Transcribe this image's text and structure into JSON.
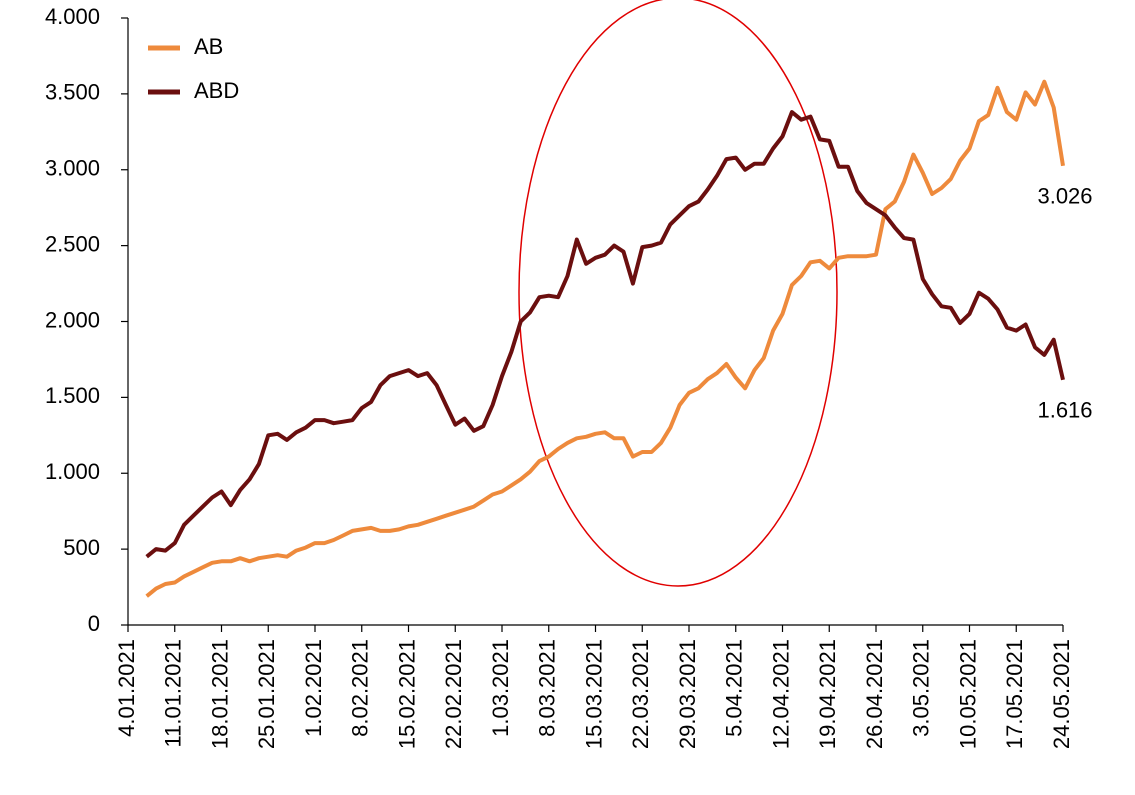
{
  "chart_data": {
    "type": "line",
    "categories": [
      "4.01.2021",
      null,
      null,
      null,
      null,
      "11.01.2021",
      null,
      null,
      null,
      null,
      "18.01.2021",
      null,
      null,
      null,
      null,
      "25.01.2021",
      null,
      null,
      null,
      null,
      "1.02.2021",
      null,
      null,
      null,
      null,
      "8.02.2021",
      null,
      null,
      null,
      null,
      "15.02.2021",
      null,
      null,
      null,
      null,
      "22.02.2021",
      null,
      null,
      null,
      null,
      "1.03.2021",
      null,
      null,
      null,
      null,
      "8.03.2021",
      null,
      null,
      null,
      null,
      "15.03.2021",
      null,
      null,
      null,
      null,
      "22.03.2021",
      null,
      null,
      null,
      null,
      "29.03.2021",
      null,
      null,
      null,
      null,
      "5.04.2021",
      null,
      null,
      null,
      null,
      "12.04.2021",
      null,
      null,
      null,
      null,
      "19.04.2021",
      null,
      null,
      null,
      null,
      "26.04.2021",
      null,
      null,
      null,
      null,
      "3.05.2021",
      null,
      null,
      null,
      null,
      "10.05.2021",
      null,
      null,
      null,
      null,
      "17.05.2021",
      null,
      null,
      null,
      null,
      "24.05.2021"
    ],
    "series": [
      {
        "name": "AB",
        "color": "#ee8a3c",
        "values": [
          null,
          null,
          190,
          240,
          270,
          280,
          320,
          350,
          380,
          410,
          420,
          420,
          440,
          420,
          440,
          450,
          460,
          450,
          490,
          510,
          540,
          540,
          560,
          590,
          620,
          630,
          640,
          620,
          620,
          630,
          650,
          660,
          680,
          700,
          720,
          740,
          760,
          780,
          820,
          860,
          880,
          920,
          960,
          1010,
          1080,
          1110,
          1160,
          1200,
          1230,
          1240,
          1260,
          1270,
          1230,
          1230,
          1110,
          1140,
          1140,
          1200,
          1300,
          1450,
          1530,
          1560,
          1620,
          1660,
          1720,
          1630,
          1560,
          1680,
          1760,
          1940,
          2050,
          2240,
          2300,
          2390,
          2400,
          2350,
          2420,
          2430,
          2430,
          2430,
          2440,
          2740,
          2790,
          2920,
          3100,
          2980,
          2840,
          2880,
          2940,
          3060,
          3140,
          3320,
          3360,
          3540,
          3380,
          3330,
          3510,
          3430,
          3580,
          3410,
          3026
        ],
        "value_labels": [
          null,
          null,
          null,
          null,
          null,
          null,
          null,
          null,
          null,
          null,
          null,
          null,
          null,
          null,
          null,
          null,
          null,
          null,
          null,
          null,
          null,
          null,
          null,
          null,
          null,
          null,
          null,
          null,
          null,
          null,
          null,
          null,
          null,
          null,
          null,
          null,
          null,
          null,
          null,
          null,
          null,
          null,
          null,
          null,
          null,
          null,
          null,
          null,
          null,
          null,
          null,
          null,
          null,
          null,
          null,
          null,
          null,
          null,
          null,
          null,
          null,
          null,
          null,
          null,
          null,
          null,
          null,
          null,
          null,
          null,
          null,
          null,
          null,
          null,
          null,
          null,
          null,
          null,
          null,
          null,
          null,
          null,
          null,
          null,
          null,
          null,
          null,
          null,
          null,
          null,
          null,
          null,
          null,
          null,
          null,
          null,
          null,
          null,
          null,
          null,
          "3.026"
        ]
      },
      {
        "name": "ABD",
        "color": "#6b0f0f",
        "values": [
          null,
          null,
          450,
          500,
          490,
          540,
          660,
          720,
          780,
          840,
          880,
          790,
          890,
          960,
          1060,
          1250,
          1260,
          1220,
          1270,
          1300,
          1350,
          1350,
          1330,
          1340,
          1350,
          1430,
          1470,
          1580,
          1640,
          1660,
          1680,
          1640,
          1660,
          1580,
          1450,
          1320,
          1360,
          1280,
          1310,
          1450,
          1640,
          1800,
          2000,
          2060,
          2160,
          2170,
          2160,
          2300,
          2540,
          2380,
          2420,
          2440,
          2500,
          2460,
          2250,
          2490,
          2500,
          2520,
          2640,
          2700,
          2760,
          2790,
          2870,
          2960,
          3070,
          3080,
          3000,
          3040,
          3040,
          3140,
          3220,
          3380,
          3330,
          3350,
          3200,
          3190,
          3020,
          3020,
          2860,
          2780,
          2740,
          2700,
          2620,
          2550,
          2540,
          2280,
          2180,
          2100,
          2090,
          1990,
          2050,
          2190,
          2150,
          2080,
          1960,
          1940,
          1980,
          1830,
          1780,
          1880,
          1616
        ],
        "value_labels": [
          null,
          null,
          null,
          null,
          null,
          null,
          null,
          null,
          null,
          null,
          null,
          null,
          null,
          null,
          null,
          null,
          null,
          null,
          null,
          null,
          null,
          null,
          null,
          null,
          null,
          null,
          null,
          null,
          null,
          null,
          null,
          null,
          null,
          null,
          null,
          null,
          null,
          null,
          null,
          null,
          null,
          null,
          null,
          null,
          null,
          null,
          null,
          null,
          null,
          null,
          null,
          null,
          null,
          null,
          null,
          null,
          null,
          null,
          null,
          null,
          null,
          null,
          null,
          null,
          null,
          null,
          null,
          null,
          null,
          null,
          null,
          null,
          null,
          null,
          null,
          null,
          null,
          null,
          null,
          null,
          null,
          null,
          null,
          null,
          null,
          null,
          null,
          null,
          null,
          null,
          null,
          null,
          null,
          null,
          null,
          null,
          null,
          null,
          null,
          null,
          "1.616"
        ]
      }
    ],
    "ylim": [
      0,
      4000
    ],
    "yticks": [
      0,
      500,
      {
        "value": 1000,
        "label": "1.000"
      },
      {
        "value": 1500,
        "label": "1.500"
      },
      {
        "value": 2000,
        "label": "2.000"
      },
      {
        "value": 2500,
        "label": "2.500"
      },
      {
        "value": 3000,
        "label": "3.000"
      },
      {
        "value": 3500,
        "label": "3.500"
      },
      {
        "value": 4000,
        "label": "4.000"
      }
    ],
    "legend": "upper-left"
  }
}
